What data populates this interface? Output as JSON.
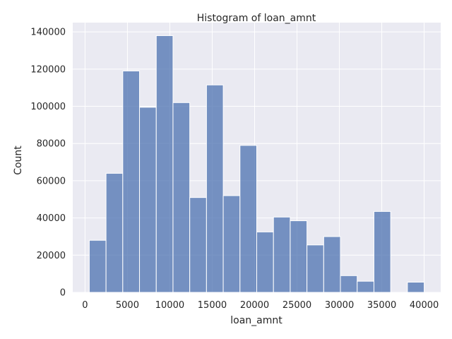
{
  "chart_data": {
    "type": "bar",
    "title": "Histogram of loan_amnt",
    "xlabel": "loan_amnt",
    "ylabel": "Count",
    "xlim": [
      -1450,
      41950
    ],
    "ylim": [
      0,
      145000
    ],
    "x_ticks": [
      0,
      5000,
      10000,
      15000,
      20000,
      25000,
      30000,
      35000,
      40000
    ],
    "y_ticks": [
      0,
      20000,
      40000,
      60000,
      80000,
      100000,
      120000,
      140000
    ],
    "bin_edges": [
      500,
      2475,
      4450,
      6425,
      8400,
      10375,
      12350,
      14325,
      16300,
      18275,
      20250,
      22225,
      24200,
      26175,
      28150,
      30125,
      32100,
      34075,
      36050,
      38025,
      40000
    ],
    "counts": [
      28000,
      64000,
      119000,
      99500,
      138000,
      102000,
      51000,
      111500,
      52000,
      79000,
      32500,
      40500,
      38500,
      25500,
      30000,
      9000,
      6000,
      43500,
      0,
      5500
    ],
    "grid": true,
    "bar_color": "#4c72b0",
    "background": "#eaeaf2"
  }
}
